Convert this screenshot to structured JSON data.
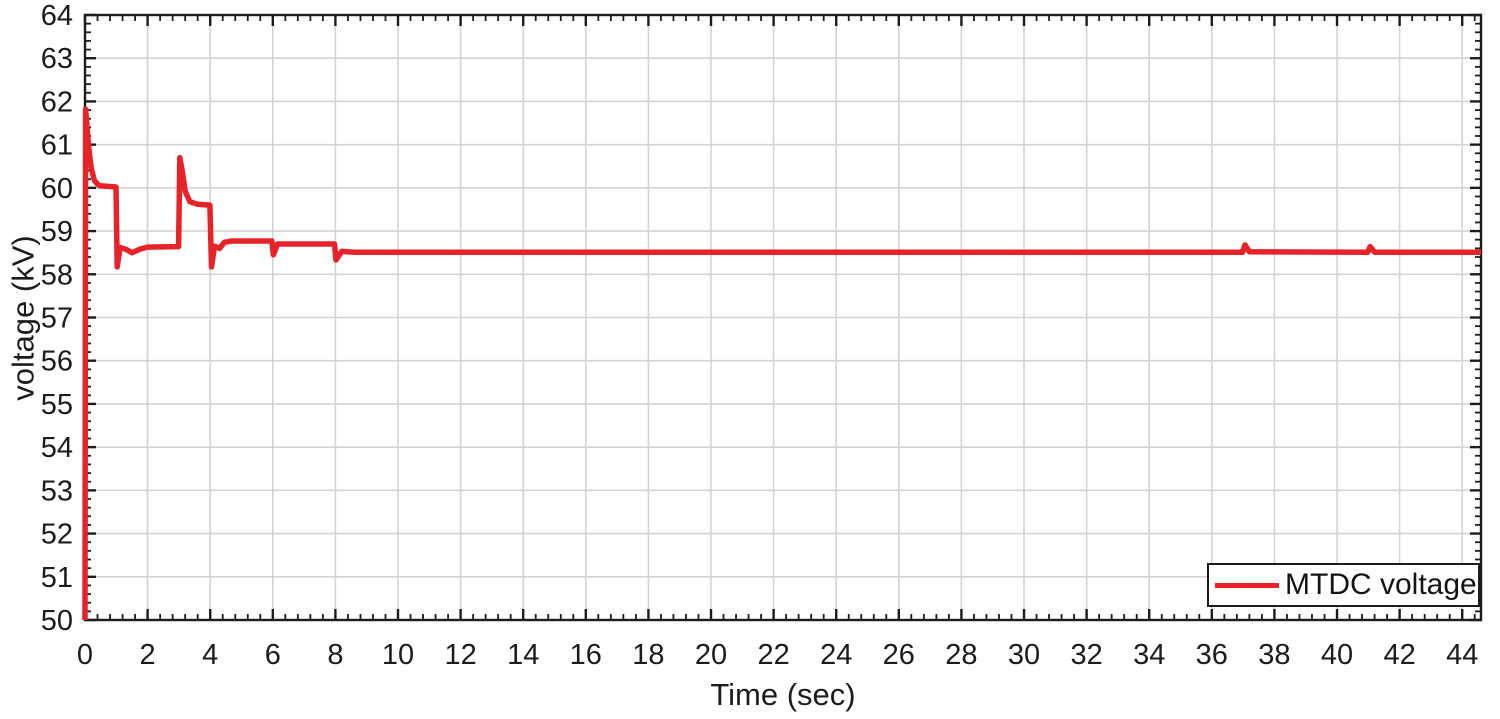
{
  "figure": {
    "background": "#ffffff",
    "axis_color": "#1c1c1c",
    "grid_color": "#d3d3d3",
    "accent_red": "#e62328"
  },
  "chart_data": {
    "type": "line",
    "title": "",
    "xlabel": "Time (sec)",
    "ylabel": "voltage (kV)",
    "xlim": [
      0,
      44.6
    ],
    "ylim": [
      50,
      64
    ],
    "xticks": [
      0,
      2,
      4,
      6,
      8,
      10,
      12,
      14,
      16,
      18,
      20,
      22,
      24,
      26,
      28,
      30,
      32,
      34,
      36,
      38,
      40,
      42,
      44
    ],
    "yticks": [
      50,
      51,
      52,
      53,
      54,
      55,
      56,
      57,
      58,
      59,
      60,
      61,
      62,
      63,
      64
    ],
    "x_minor_step": 0.4,
    "y_minor_step": 0.2,
    "grid": "major",
    "legend": {
      "position": "bottom-right",
      "entries": [
        {
          "label": "MTDC voltage",
          "color": "#e62328"
        }
      ]
    },
    "series": [
      {
        "name": "MTDC voltage",
        "color": "#e62328",
        "line_width": 5.5,
        "points": [
          [
            0,
            50
          ],
          [
            0.02,
            61.82
          ],
          [
            0.07,
            61.35
          ],
          [
            0.13,
            60.85
          ],
          [
            0.2,
            60.45
          ],
          [
            0.3,
            60.17
          ],
          [
            0.45,
            60.05
          ],
          [
            0.99,
            60.02
          ],
          [
            1.03,
            58.17
          ],
          [
            1.12,
            58.62
          ],
          [
            1.3,
            58.58
          ],
          [
            1.5,
            58.5
          ],
          [
            1.75,
            58.58
          ],
          [
            2,
            58.63
          ],
          [
            2.99,
            58.64
          ],
          [
            3.03,
            60.7
          ],
          [
            3.1,
            60.42
          ],
          [
            3.2,
            59.92
          ],
          [
            3.35,
            59.68
          ],
          [
            3.6,
            59.62
          ],
          [
            3.99,
            59.6
          ],
          [
            4.04,
            58.17
          ],
          [
            4.14,
            58.65
          ],
          [
            4.3,
            58.6
          ],
          [
            4.45,
            58.74
          ],
          [
            4.7,
            58.77
          ],
          [
            5.97,
            58.77
          ],
          [
            6.02,
            58.45
          ],
          [
            6.15,
            58.7
          ],
          [
            7.97,
            58.7
          ],
          [
            8.02,
            58.33
          ],
          [
            8.2,
            58.53
          ],
          [
            8.6,
            58.51
          ],
          [
            36.98,
            58.51
          ],
          [
            37.06,
            58.68
          ],
          [
            37.2,
            58.52
          ],
          [
            40.98,
            58.51
          ],
          [
            41.06,
            58.64
          ],
          [
            41.2,
            58.51
          ],
          [
            44.6,
            58.51
          ]
        ]
      }
    ]
  }
}
